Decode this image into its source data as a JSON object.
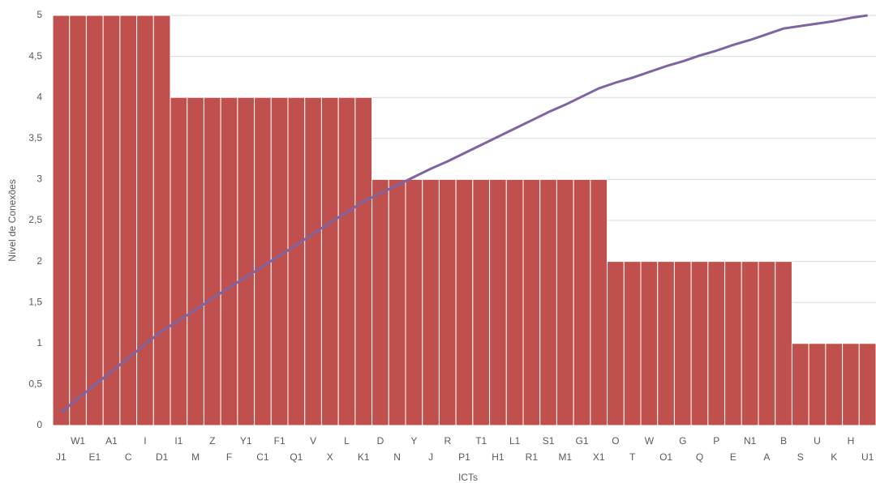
{
  "chart_data": {
    "type": "bar",
    "x_label": "ICTs",
    "y_label": "Nível de Conexões",
    "categories": [
      "J1",
      "W1",
      "E1",
      "A1",
      "C",
      "I",
      "D1",
      "I1",
      "M",
      "Z",
      "F",
      "Y1",
      "C1",
      "F1",
      "Q1",
      "V",
      "X",
      "L",
      "K1",
      "D",
      "N",
      "Y",
      "J",
      "R",
      "P1",
      "T1",
      "H1",
      "L1",
      "R1",
      "S1",
      "M1",
      "G1",
      "X1",
      "O",
      "T",
      "W",
      "O1",
      "G",
      "Q",
      "P",
      "E",
      "N1",
      "A",
      "B",
      "S",
      "U",
      "K",
      "H",
      "U1"
    ],
    "series": [
      {
        "type": "bar",
        "color": "#c0504d",
        "values": [
          5,
          5,
          5,
          5,
          5,
          5,
          5,
          4,
          4,
          4,
          4,
          4,
          4,
          4,
          4,
          4,
          4,
          4,
          4,
          3,
          3,
          3,
          3,
          3,
          3,
          3,
          3,
          3,
          3,
          3,
          3,
          3,
          3,
          2,
          2,
          2,
          2,
          2,
          2,
          2,
          2,
          2,
          2,
          2,
          1,
          1,
          1,
          1,
          1
        ]
      },
      {
        "type": "line",
        "color": "#8064a2",
        "values": [
          0.16,
          0.33,
          0.49,
          0.66,
          0.82,
          0.99,
          1.15,
          1.28,
          1.41,
          1.55,
          1.68,
          1.81,
          1.94,
          2.07,
          2.2,
          2.34,
          2.47,
          2.6,
          2.73,
          2.83,
          2.93,
          3.03,
          3.13,
          3.22,
          3.32,
          3.42,
          3.52,
          3.62,
          3.72,
          3.82,
          3.91,
          4.01,
          4.11,
          4.18,
          4.24,
          4.31,
          4.38,
          4.44,
          4.51,
          4.57,
          4.64,
          4.7,
          4.77,
          4.84,
          4.87,
          4.9,
          4.93,
          4.97,
          5.0
        ]
      }
    ],
    "ylim": [
      0,
      5
    ],
    "yticks": [
      0,
      {
        "value": 0.5,
        "label": "0,5"
      },
      1,
      {
        "value": 1.5,
        "label": "1,5"
      },
      2,
      {
        "value": 2.5,
        "label": "2,5"
      },
      3,
      {
        "value": 3.5,
        "label": "3,5"
      },
      4,
      {
        "value": 4.5,
        "label": "4,5"
      },
      5
    ],
    "grid": true
  }
}
